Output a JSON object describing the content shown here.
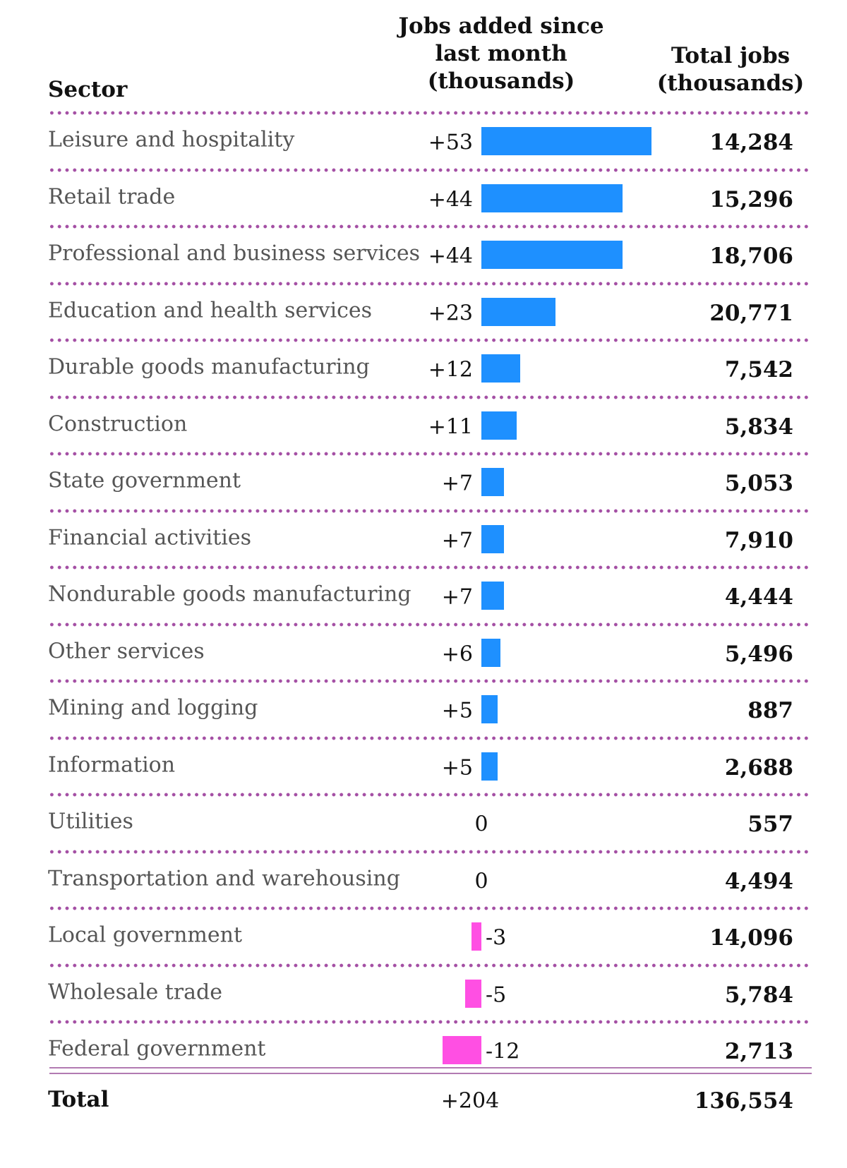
{
  "header": {
    "sector": "Sector",
    "jobs_added": [
      "Jobs added since",
      "last month",
      "(thousands)"
    ],
    "total_jobs": [
      "Total jobs",
      "(thousands)"
    ]
  },
  "colors": {
    "positive": "#1e90ff",
    "negative": "#ff4fe3",
    "separator": "#a44fa4"
  },
  "chart_data": {
    "type": "bar",
    "categories": [
      "Leisure and hospitality",
      "Retail trade",
      "Professional and business services",
      "Education and health services",
      "Durable goods manufacturing",
      "Construction",
      "State government",
      "Financial activities",
      "Nondurable goods manufacturing",
      "Other services",
      "Mining and logging",
      "Information",
      "Utilities",
      "Transportation and warehousing",
      "Local government",
      "Wholesale trade",
      "Federal government"
    ],
    "values": [
      53,
      44,
      44,
      23,
      12,
      11,
      7,
      7,
      7,
      6,
      5,
      5,
      0,
      0,
      -3,
      -5,
      -12
    ],
    "labels": [
      "+53",
      "+44",
      "+44",
      "+23",
      "+12",
      "+11",
      "+7",
      "+7",
      "+7",
      "+6",
      "+5",
      "+5",
      "0",
      "0",
      "-3",
      "-5",
      "-12"
    ],
    "totals": [
      "14,284",
      "15,296",
      "18,706",
      "20,771",
      "7,542",
      "5,834",
      "5,053",
      "7,910",
      "4,444",
      "5,496",
      "887",
      "2,688",
      "557",
      "4,494",
      "14,096",
      "5,784",
      "2,713"
    ]
  },
  "summary": {
    "label": "Total",
    "change": "+204",
    "total": "136,554"
  }
}
